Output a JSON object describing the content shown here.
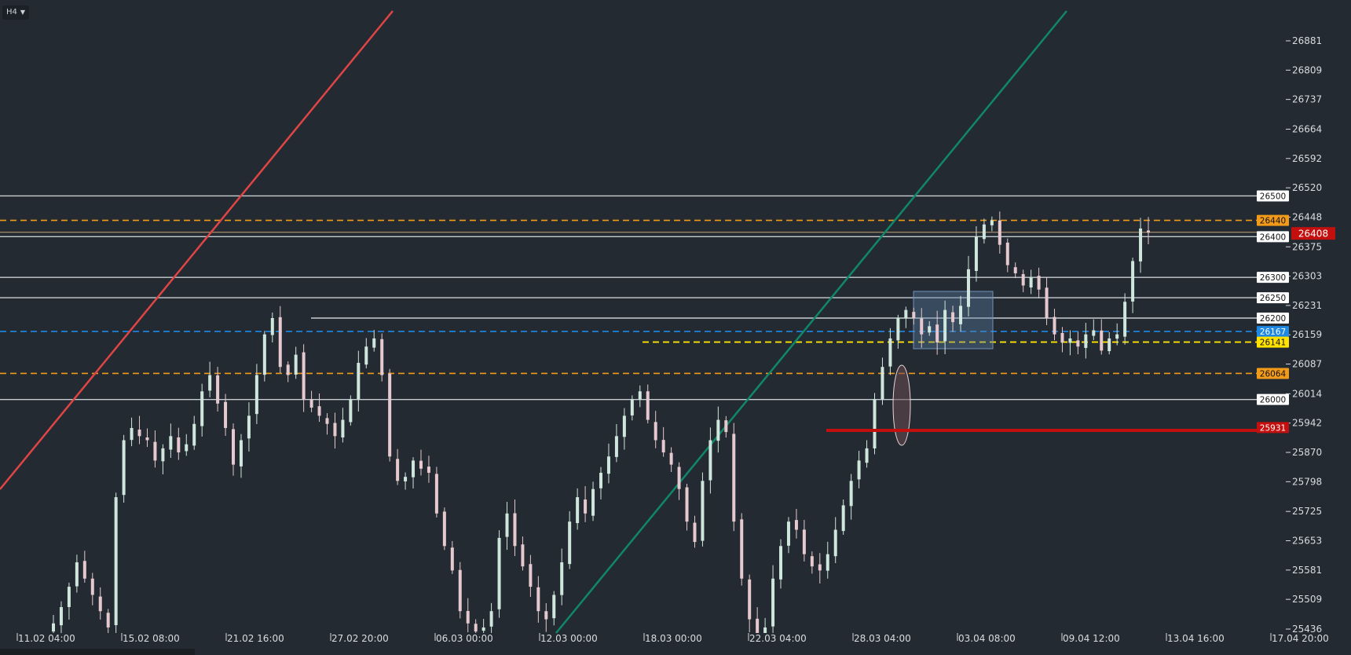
{
  "toolbar": {
    "timeframe": "H4"
  },
  "colors": {
    "background": "#232a31",
    "bull": "#cfe6dc",
    "bear": "#e6c9cf",
    "red_line": "#e04545",
    "green_line": "#10876a",
    "orange": "#f29a1a",
    "blue": "#1e88e5",
    "yellow": "#ffe200",
    "current_price": "#c40f0f"
  },
  "chart_data": {
    "type": "candlestick",
    "title": "",
    "symbol_timeframe": "H4",
    "y_axis": {
      "ticks": [
        "26881",
        "26809",
        "26737",
        "26664",
        "26592",
        "26520",
        "26448",
        "26375",
        "26303",
        "26231",
        "26159",
        "26087",
        "26014",
        "25942",
        "25870",
        "25798",
        "25725",
        "25653",
        "25581",
        "25509",
        "25436"
      ],
      "range": [
        25436,
        26881
      ]
    },
    "x_axis": {
      "ticks": [
        "11.02 04:00",
        "15.02 08:00",
        "21.02 16:00",
        "27.02 20:00",
        "06.03 00:00",
        "12.03 00:00",
        "18.03 00:00",
        "22.03 04:00",
        "28.03 04:00",
        "03.04 08:00",
        "09.04 12:00",
        "13.04 16:00",
        "17.04 20:00"
      ]
    },
    "current_price": {
      "value": 26408,
      "label": "26408"
    },
    "horizontal_levels": [
      {
        "value": 26500,
        "label": "26500",
        "style": "solid-gray"
      },
      {
        "value": 26440,
        "label": "26440",
        "style": "dashed-orange"
      },
      {
        "value": 26400,
        "label": "26400",
        "style": "solid-gray"
      },
      {
        "value": 26300,
        "label": "26300",
        "style": "solid-gray"
      },
      {
        "value": 26250,
        "label": "26250",
        "style": "solid-gray"
      },
      {
        "value": 26200,
        "label": "26200",
        "style": "solid-gray"
      },
      {
        "value": 26167,
        "label": "26167",
        "style": "dashed-blue"
      },
      {
        "value": 26141,
        "label": "26141",
        "style": "dashed-yellow"
      },
      {
        "value": 26064,
        "label": "26064",
        "style": "dashed-orange"
      },
      {
        "value": 26000,
        "label": "26000",
        "style": "solid-gray"
      },
      {
        "value": 25931,
        "label": "25931",
        "style": "thick-red"
      }
    ],
    "candles_approx": [
      25450,
      25490,
      25540,
      25600,
      25560,
      25520,
      25480,
      25440,
      25760,
      25900,
      25930,
      25910,
      25900,
      25850,
      25880,
      25910,
      25870,
      25890,
      25940,
      26020,
      26060,
      25990,
      25930,
      25840,
      25900,
      25960,
      26060,
      26160,
      26200,
      26080,
      26060,
      26110,
      26000,
      25980,
      25960,
      25940,
      25910,
      25950,
      26000,
      26090,
      26130,
      26150,
      26060,
      25860,
      25800,
      25810,
      25850,
      25830,
      25820,
      25720,
      25640,
      25580,
      25480,
      25450,
      25430,
      25440,
      25480,
      25660,
      25720,
      25640,
      25590,
      25540,
      25480,
      25460,
      25520,
      25600,
      25700,
      25760,
      25720,
      25780,
      25820,
      25860,
      25910,
      25960,
      26000,
      26020,
      25950,
      25900,
      25870,
      25840,
      25780,
      25700,
      25650,
      25800,
      25900,
      25950,
      25920,
      25700,
      25560,
      25460,
      25420,
      25440,
      25560,
      25640,
      25700,
      25680,
      25620,
      25590,
      25580,
      25620,
      25680,
      25740,
      25800,
      25850,
      25880,
      26000,
      26080,
      26150,
      26200,
      26220,
      26200,
      26160,
      26180,
      26140,
      26220,
      26190,
      26230,
      26320,
      26400,
      26430,
      26440,
      26380,
      26330,
      26310,
      26280,
      26300,
      26270,
      26200,
      26160,
      26140,
      26150,
      26130,
      26160,
      26170,
      26120,
      26150,
      26160,
      26240,
      26340,
      26420,
      26410
    ]
  }
}
